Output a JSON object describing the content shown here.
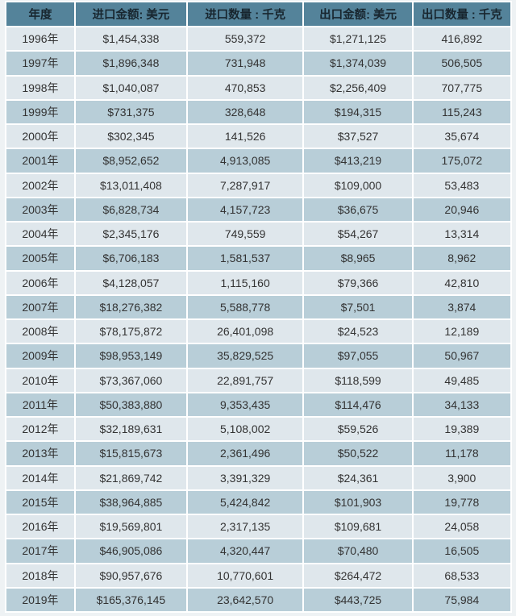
{
  "colors": {
    "page_bg": "#eef2f4",
    "separator": "#ffffff",
    "header_bg": "#54839a",
    "header_text": "#18262f",
    "row_light": "#dfe7ec",
    "row_dark": "#b8ced8",
    "body_text": "#333333"
  },
  "chart_data": {
    "type": "table",
    "columns": [
      "年度",
      "进口金额: 美元",
      "进口数量 : 千克",
      "出口金额: 美元",
      "出口数量 : 千克"
    ],
    "rows": [
      [
        "1996年",
        "$1,454,338",
        "559,372",
        "$1,271,125",
        "416,892"
      ],
      [
        "1997年",
        "$1,896,348",
        "731,948",
        "$1,374,039",
        "506,505"
      ],
      [
        "1998年",
        "$1,040,087",
        "470,853",
        "$2,256,409",
        "707,775"
      ],
      [
        "1999年",
        "$731,375",
        "328,648",
        "$194,315",
        "115,243"
      ],
      [
        "2000年",
        "$302,345",
        "141,526",
        "$37,527",
        "35,674"
      ],
      [
        "2001年",
        "$8,952,652",
        "4,913,085",
        "$413,219",
        "175,072"
      ],
      [
        "2002年",
        "$13,011,408",
        "7,287,917",
        "$109,000",
        "53,483"
      ],
      [
        "2003年",
        "$6,828,734",
        "4,157,723",
        "$36,675",
        "20,946"
      ],
      [
        "2004年",
        "$2,345,176",
        "749,559",
        "$54,267",
        "13,314"
      ],
      [
        "2005年",
        "$6,706,183",
        "1,581,537",
        "$8,965",
        "8,962"
      ],
      [
        "2006年",
        "$4,128,057",
        "1,115,160",
        "$79,366",
        "42,810"
      ],
      [
        "2007年",
        "$18,276,382",
        "5,588,778",
        "$7,501",
        "3,874"
      ],
      [
        "2008年",
        "$78,175,872",
        "26,401,098",
        "$24,523",
        "12,189"
      ],
      [
        "2009年",
        "$98,953,149",
        "35,829,525",
        "$97,055",
        "50,967"
      ],
      [
        "2010年",
        "$73,367,060",
        "22,891,757",
        "$118,599",
        "49,485"
      ],
      [
        "2011年",
        "$50,383,880",
        "9,353,435",
        "$114,476",
        "34,133"
      ],
      [
        "2012年",
        "$32,189,631",
        "5,108,002",
        "$59,526",
        "19,389"
      ],
      [
        "2013年",
        "$15,815,673",
        "2,361,496",
        "$50,522",
        "11,178"
      ],
      [
        "2014年",
        "$21,869,742",
        "3,391,329",
        "$24,361",
        "3,900"
      ],
      [
        "2015年",
        "$38,964,885",
        "5,424,842",
        "$101,903",
        "19,778"
      ],
      [
        "2016年",
        "$19,569,801",
        "2,317,135",
        "$109,681",
        "24,058"
      ],
      [
        "2017年",
        "$46,905,086",
        "4,320,447",
        "$70,480",
        "16,505"
      ],
      [
        "2018年",
        "$90,957,676",
        "10,770,601",
        "$264,472",
        "68,533"
      ],
      [
        "2019年",
        "$165,376,145",
        "23,642,570",
        "$443,725",
        "75,984"
      ]
    ]
  }
}
